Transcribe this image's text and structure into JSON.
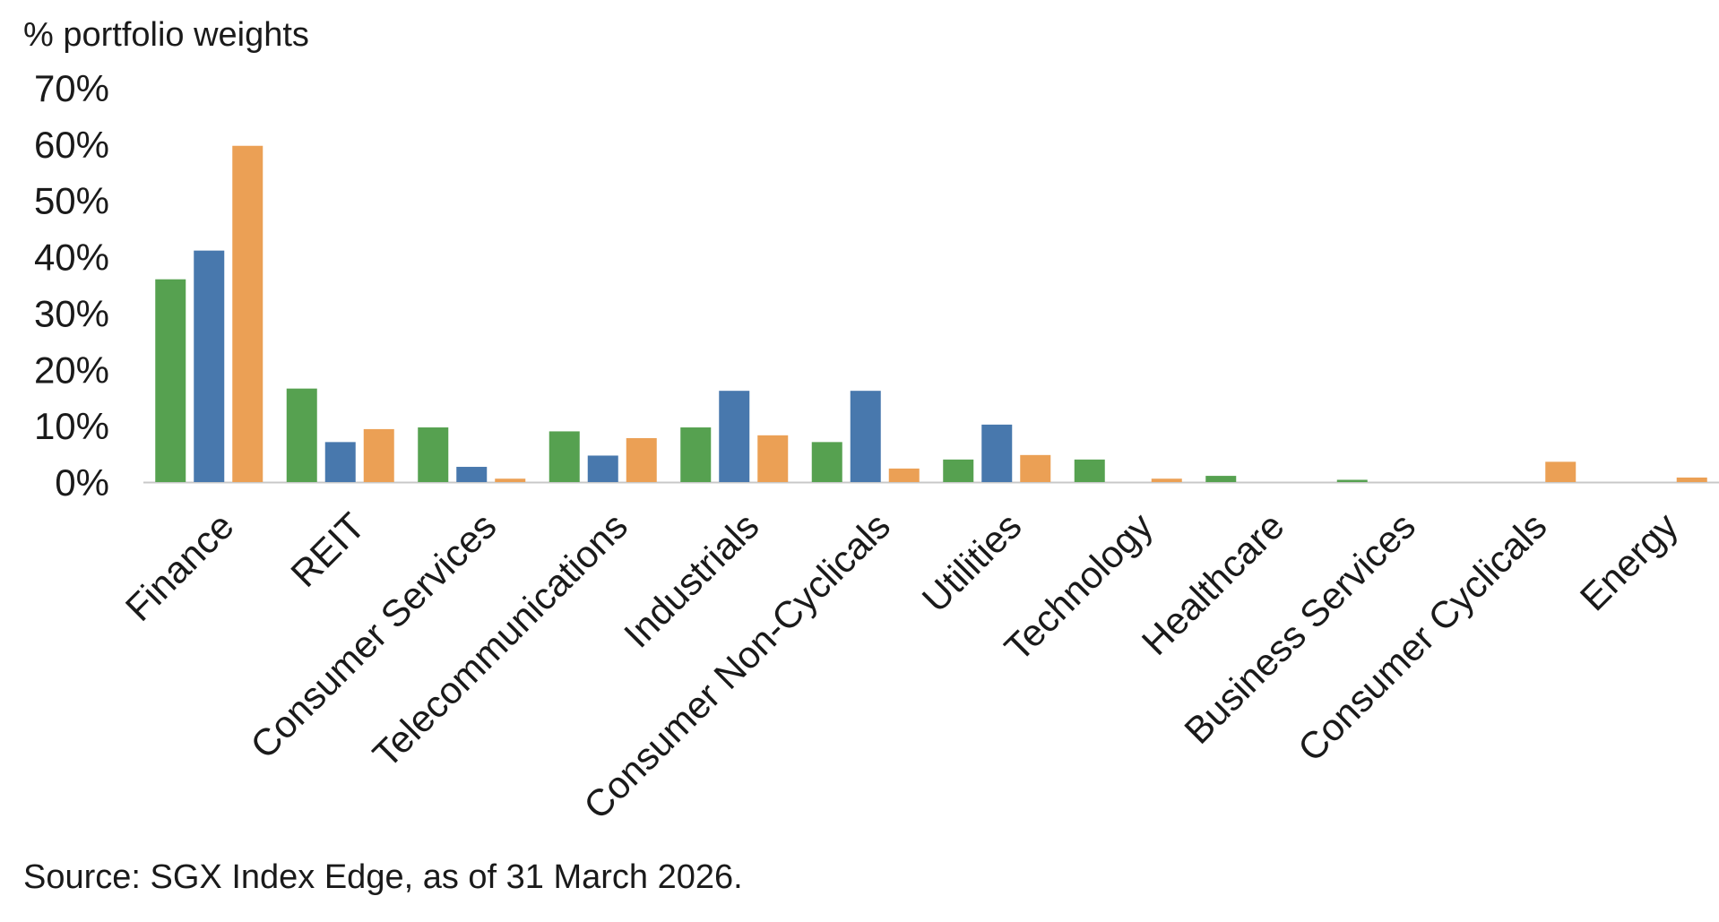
{
  "unit_label": "% portfolio weights",
  "source_note": "Source: SGX Index Edge, as of 31 March 2026.",
  "colors": {
    "series1": "#56a150",
    "series2": "#4878ad",
    "series3": "#eba055",
    "axis": "#c8c8c8"
  },
  "chart_data": {
    "type": "bar",
    "categories": [
      "Finance",
      "REIT",
      "Consumer Services",
      "Telecommunications",
      "Industrials",
      "Consumer Non-Cyclicals",
      "Utilities",
      "Technology",
      "Healthcare",
      "Business Services",
      "Consumer Cyclicals",
      "Energy"
    ],
    "series": [
      {
        "color": "#56a150",
        "values": [
          36,
          16.6,
          9.7,
          9.0,
          9.7,
          7.1,
          4.0,
          4.0,
          1.1,
          0.4,
          0,
          0
        ]
      },
      {
        "color": "#4878ad",
        "values": [
          41.1,
          7.1,
          2.7,
          4.7,
          16.2,
          16.2,
          10.2,
          0,
          0,
          0,
          0,
          0
        ]
      },
      {
        "color": "#eba055",
        "values": [
          59.7,
          9.4,
          0.6,
          7.8,
          8.3,
          2.4,
          4.8,
          0.6,
          0,
          0,
          3.6,
          0.8
        ]
      }
    ],
    "ylim": [
      0,
      70
    ],
    "yticks": [
      0,
      10,
      20,
      30,
      40,
      50,
      60,
      70
    ],
    "ytick_labels": [
      "0%",
      "10%",
      "20%",
      "30%",
      "40%",
      "50%",
      "60%",
      "70%"
    ],
    "title": "",
    "xlabel": "",
    "ylabel": "% portfolio weights",
    "grid": false,
    "legend": "none"
  }
}
